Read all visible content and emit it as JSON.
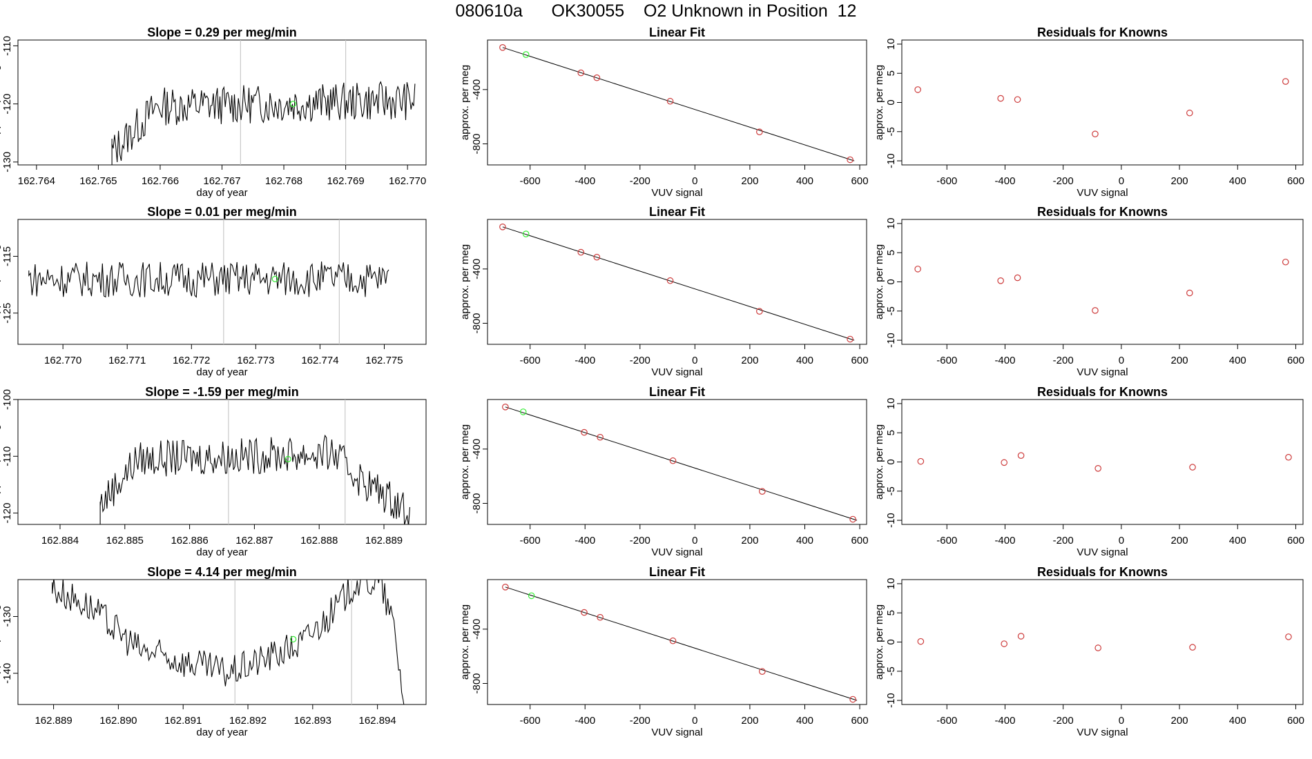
{
  "figure": {
    "title": "080610a      OK30055    O2 Unknown in Position  12",
    "colors": {
      "line": "#000000",
      "known": "#cd3b3b",
      "unknown": "#33ee33",
      "vline": "#c8c8c8"
    }
  },
  "chart_data": [
    {
      "type": "line",
      "title": "Slope =  0.29  per meg/min",
      "xlabel": "day of year",
      "ylabel": "approx. per meg",
      "xlim": [
        162.7637,
        162.7703
      ],
      "ylim": [
        -130.5,
        -109
      ],
      "xticks": [
        "162.764",
        "162.765",
        "162.766",
        "162.767",
        "162.768",
        "162.769",
        "162.770"
      ],
      "yticks": [
        "-110",
        "-120",
        "-130"
      ],
      "vlines": [
        162.7673,
        162.769
      ],
      "start": 162.76522,
      "end": 162.77012,
      "start_value": -130.5,
      "jump_value": -126,
      "baseline": -119.4,
      "noise": 2.1,
      "trend": [
        [
          0,
          -9
        ],
        [
          0.15,
          -1
        ],
        [
          1,
          0
        ]
      ],
      "unknown_point": {
        "x": 162.76815,
        "y": -120
      }
    },
    {
      "type": "line",
      "title": "Slope =  0.01  per meg/min",
      "xlabel": "day of year",
      "ylabel": "approx. per meg",
      "xlim": [
        162.7693,
        162.77565
      ],
      "ylim": [
        -130.5,
        -108.5
      ],
      "xticks": [
        "162.770",
        "162.771",
        "162.772",
        "162.773",
        "162.774",
        "162.775"
      ],
      "yticks": [
        "-115",
        "-125"
      ],
      "vlines": [
        162.7725,
        162.7743
      ],
      "start": 162.76947,
      "end": 162.77507,
      "start_value": -117.5,
      "jump_value": -117.5,
      "baseline": -119.0,
      "noise": 2.0,
      "trend": [
        [
          0,
          0
        ],
        [
          1,
          0
        ]
      ],
      "unknown_point": {
        "x": 162.7733,
        "y": -119
      }
    },
    {
      "type": "line",
      "title": "Slope =  -1.59  per meg/min",
      "xlabel": "day of year",
      "ylabel": "approx. per meg",
      "xlim": [
        162.88335,
        162.88965
      ],
      "ylim": [
        -122,
        -100
      ],
      "xticks": [
        "162.884",
        "162.885",
        "162.886",
        "162.887",
        "162.888",
        "162.889"
      ],
      "yticks": [
        "-100",
        "-110",
        "-120"
      ],
      "vlines": [
        162.8866,
        162.8884
      ],
      "start": 162.88462,
      "end": 162.8894,
      "start_value": -122,
      "jump_value": -118,
      "baseline": -108.5,
      "noise": 2.0,
      "trend": [
        [
          0,
          -10
        ],
        [
          0.12,
          -2
        ],
        [
          0.75,
          -1
        ],
        [
          0.85,
          -6
        ],
        [
          1,
          -11
        ]
      ],
      "unknown_point": {
        "x": 162.88752,
        "y": -110.5
      }
    },
    {
      "type": "line",
      "title": "Slope =  4.14  per meg/min",
      "xlabel": "day of year",
      "ylabel": "approx. per meg",
      "xlim": [
        162.88845,
        162.89475
      ],
      "ylim": [
        -145.5,
        -123.5
      ],
      "xticks": [
        "162.889",
        "162.890",
        "162.891",
        "162.892",
        "162.893",
        "162.894"
      ],
      "yticks": [
        "-130",
        "-140"
      ],
      "vlines": [
        162.8918,
        162.8936
      ],
      "start": 162.88898,
      "end": 162.89442,
      "start_value": -124,
      "jump_value": -124,
      "baseline": -134,
      "noise": 1.8,
      "trend": [
        [
          0,
          9
        ],
        [
          0.1,
          6
        ],
        [
          0.25,
          -2
        ],
        [
          0.5,
          -6
        ],
        [
          0.7,
          -1
        ],
        [
          0.8,
          5
        ],
        [
          0.86,
          10
        ],
        [
          0.93,
          10
        ],
        [
          0.97,
          2
        ],
        [
          1,
          -12
        ]
      ],
      "unknown_point": {
        "x": 162.8927,
        "y": -134
      }
    },
    {
      "type": "scatter",
      "title": "Linear Fit",
      "xlabel": "VUV signal",
      "ylabel": "approx. per meg",
      "xlim": [
        -755,
        625
      ],
      "ylim": [
        -955,
        -35
      ],
      "xticks": [
        "-600",
        "-400",
        "-200",
        "0",
        "200",
        "400",
        "600"
      ],
      "yticks": [
        "-400",
        "-800"
      ],
      "fit_line": [
        [
          -700,
          -90
        ],
        [
          580,
          -925
        ]
      ],
      "known": [
        [
          -700,
          -90
        ],
        [
          -415,
          -277
        ],
        [
          -357,
          -313
        ],
        [
          -90,
          -486
        ],
        [
          235,
          -712
        ],
        [
          565,
          -917
        ]
      ],
      "unknown": [
        [
          -615,
          -142
        ]
      ]
    },
    {
      "type": "scatter",
      "title": "Linear Fit",
      "xlabel": "VUV signal",
      "ylabel": "approx. per meg",
      "xlim": [
        -755,
        625
      ],
      "ylim": [
        -955,
        -35
      ],
      "xticks": [
        "-600",
        "-400",
        "-200",
        "0",
        "200",
        "400",
        "600"
      ],
      "yticks": [
        "-400",
        "-800"
      ],
      "fit_line": [
        [
          -700,
          -90
        ],
        [
          580,
          -925
        ]
      ],
      "known": [
        [
          -700,
          -90
        ],
        [
          -415,
          -277
        ],
        [
          -357,
          -313
        ],
        [
          -90,
          -486
        ],
        [
          235,
          -712
        ],
        [
          565,
          -917
        ]
      ],
      "unknown": [
        [
          -615,
          -142
        ]
      ]
    },
    {
      "type": "scatter",
      "title": "Linear Fit",
      "xlabel": "VUV signal",
      "ylabel": "approx. per meg",
      "xlim": [
        -755,
        625
      ],
      "ylim": [
        -955,
        -35
      ],
      "xticks": [
        "-600",
        "-400",
        "-200",
        "0",
        "200",
        "400",
        "600"
      ],
      "yticks": [
        "-400",
        "-800"
      ],
      "fit_line": [
        [
          -690,
          -90
        ],
        [
          590,
          -925
        ]
      ],
      "known": [
        [
          -690,
          -90
        ],
        [
          -403,
          -277
        ],
        [
          -345,
          -313
        ],
        [
          -80,
          -486
        ],
        [
          245,
          -712
        ],
        [
          575,
          -917
        ]
      ],
      "unknown": [
        [
          -625,
          -126
        ]
      ]
    },
    {
      "type": "scatter",
      "title": "Linear Fit",
      "xlabel": "VUV signal",
      "ylabel": "approx. per meg",
      "xlim": [
        -755,
        625
      ],
      "ylim": [
        -955,
        -35
      ],
      "xticks": [
        "-600",
        "-400",
        "-200",
        "0",
        "200",
        "400",
        "600"
      ],
      "yticks": [
        "-400",
        "-800"
      ],
      "fit_line": [
        [
          -690,
          -90
        ],
        [
          590,
          -925
        ]
      ],
      "known": [
        [
          -690,
          -90
        ],
        [
          -403,
          -277
        ],
        [
          -345,
          -313
        ],
        [
          -80,
          -486
        ],
        [
          245,
          -712
        ],
        [
          575,
          -917
        ]
      ],
      "unknown": [
        [
          -595,
          -154
        ]
      ]
    },
    {
      "type": "scatter",
      "title": "Residuals for Knowns",
      "xlabel": "VUV signal",
      "ylabel": "approx. per meg",
      "xlim": [
        -755,
        625
      ],
      "ylim": [
        -10.7,
        10.7
      ],
      "xticks": [
        "-600",
        "-400",
        "-200",
        "0",
        "200",
        "400",
        "600"
      ],
      "yticks": [
        "10",
        "5",
        "0",
        "-5",
        "-10"
      ],
      "known": [
        [
          -700,
          2.2
        ],
        [
          -415,
          0.7
        ],
        [
          -357,
          0.5
        ],
        [
          -90,
          -5.4
        ],
        [
          235,
          -1.8
        ],
        [
          565,
          3.6
        ]
      ]
    },
    {
      "type": "scatter",
      "title": "Residuals for Knowns",
      "xlabel": "VUV signal",
      "ylabel": "approx. per meg",
      "xlim": [
        -755,
        625
      ],
      "ylim": [
        -10.7,
        10.7
      ],
      "xticks": [
        "-600",
        "-400",
        "-200",
        "0",
        "200",
        "400",
        "600"
      ],
      "yticks": [
        "10",
        "5",
        "0",
        "-5",
        "-10"
      ],
      "known": [
        [
          -700,
          2.2
        ],
        [
          -415,
          0.2
        ],
        [
          -357,
          0.7
        ],
        [
          -90,
          -4.9
        ],
        [
          235,
          -1.9
        ],
        [
          565,
          3.4
        ]
      ]
    },
    {
      "type": "scatter",
      "title": "Residuals for Knowns",
      "xlabel": "VUV signal",
      "ylabel": "approx. per meg",
      "xlim": [
        -755,
        625
      ],
      "ylim": [
        -10.7,
        10.7
      ],
      "xticks": [
        "-600",
        "-400",
        "-200",
        "0",
        "200",
        "400",
        "600"
      ],
      "yticks": [
        "10",
        "5",
        "0",
        "-5",
        "-10"
      ],
      "known": [
        [
          -690,
          0.1
        ],
        [
          -403,
          -0.1
        ],
        [
          -345,
          1.1
        ],
        [
          -80,
          -1.1
        ],
        [
          245,
          -0.9
        ],
        [
          575,
          0.8
        ]
      ]
    },
    {
      "type": "scatter",
      "title": "Residuals for Knowns",
      "xlabel": "VUV signal",
      "ylabel": "approx. per meg",
      "xlim": [
        -755,
        625
      ],
      "ylim": [
        -10.7,
        10.7
      ],
      "xticks": [
        "-600",
        "-400",
        "-200",
        "0",
        "200",
        "400",
        "600"
      ],
      "yticks": [
        "10",
        "5",
        "0",
        "-5",
        "-10"
      ],
      "known": [
        [
          -690,
          0.1
        ],
        [
          -403,
          -0.3
        ],
        [
          -345,
          1.0
        ],
        [
          -80,
          -1.0
        ],
        [
          245,
          -0.9
        ],
        [
          575,
          0.9
        ]
      ]
    }
  ]
}
